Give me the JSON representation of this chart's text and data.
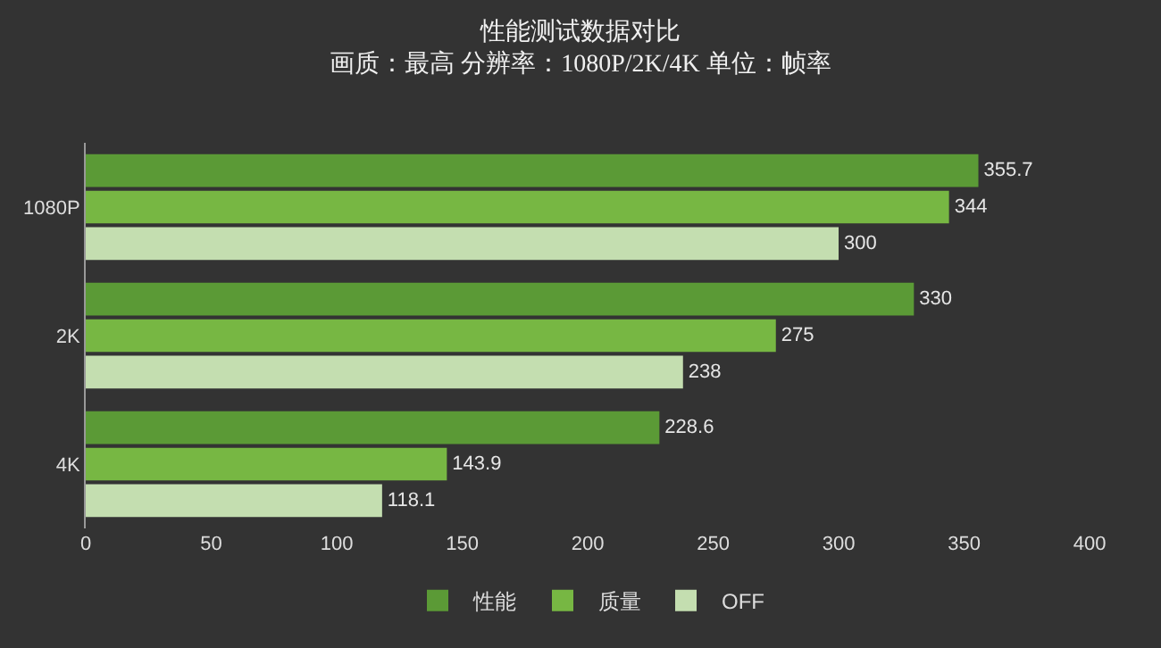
{
  "chart_data": {
    "type": "bar",
    "orientation": "horizontal",
    "title": "性能测试数据对比",
    "subtitle": "画质：最高 分辨率：1080P/2K/4K 单位：帧率",
    "categories": [
      "1080P",
      "2K",
      "4K"
    ],
    "series": [
      {
        "name": "性能",
        "color": "#5b9a36",
        "values": [
          355.7,
          330,
          228.6
        ]
      },
      {
        "name": "质量",
        "color": "#77b743",
        "values": [
          344,
          275,
          143.9
        ]
      },
      {
        "name": "OFF",
        "color": "#c4deb0",
        "values": [
          300,
          238,
          118.1
        ]
      }
    ],
    "xlim": [
      0,
      400
    ],
    "xticks": [
      0,
      50,
      100,
      150,
      200,
      250,
      300,
      350,
      400
    ],
    "grid": false,
    "legend": "bottom",
    "data_labels": true
  }
}
